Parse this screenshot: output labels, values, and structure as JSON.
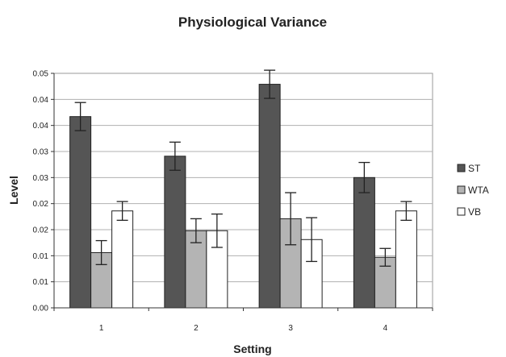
{
  "chart_data": {
    "type": "bar",
    "title": "Physiological Variance",
    "xlabel": "Setting",
    "ylabel": "Level",
    "categories": [
      "1",
      "2",
      "3",
      "4"
    ],
    "y_tick_labels": [
      "0.00",
      "0.01",
      "0.01",
      "0.02",
      "0.02",
      "0.03",
      "0.03",
      "0.04",
      "0.04",
      "0.05"
    ],
    "ylim": [
      0,
      0.045
    ],
    "grid": true,
    "legend_position": "right",
    "series": [
      {
        "name": "ST",
        "color": "#555555",
        "values": [
          0.0367,
          0.0291,
          0.0429,
          0.025
        ],
        "error": [
          0.0027,
          0.0027,
          0.0027,
          0.0029
        ]
      },
      {
        "name": "WTA",
        "color": "#b4b4b4",
        "values": [
          0.0106,
          0.0148,
          0.0171,
          0.0097
        ],
        "error": [
          0.0023,
          0.0023,
          0.005,
          0.0017
        ]
      },
      {
        "name": "VB",
        "color": "#ffffff",
        "values": [
          0.0186,
          0.0148,
          0.0131,
          0.0186
        ],
        "error": [
          0.0018,
          0.0032,
          0.0042,
          0.0018
        ]
      }
    ]
  }
}
